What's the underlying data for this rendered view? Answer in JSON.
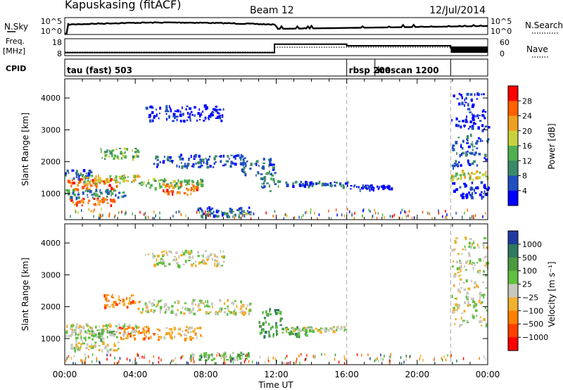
{
  "header": {
    "station": "Kapuskasing (fitACF)",
    "beam": "Beam 12",
    "date": "12/Jul/2014"
  },
  "noise_panel": {
    "left_label": "N.Sky",
    "right_label": "N.Search",
    "left_ticks": [
      "10^5",
      "10^0"
    ],
    "right_ticks": [
      "10^5",
      "10^0"
    ]
  },
  "freq_panel": {
    "left_label_top": "Freq.",
    "left_label_unit": "[MHz]",
    "right_label": "Nave",
    "left_ticks": [
      "18",
      "8"
    ],
    "right_ticks": [
      "60",
      "0"
    ]
  },
  "cpid_panel": {
    "label": "CPID",
    "modes": [
      {
        "name": "tau (fast) 503",
        "start_h": 0.0,
        "end_h": 16.0
      },
      {
        "name": "rbsp 200",
        "start_h": 16.0,
        "end_h": 17.6
      },
      {
        "name": "icescan 1200",
        "start_h": 17.6,
        "end_h": 21.9
      }
    ]
  },
  "power_panel": {
    "ylabel": "Slant Range [km]",
    "yticks": [
      "4000",
      "3000",
      "2000",
      "1000"
    ],
    "colorbar_label": "Power [dB]",
    "colorbar_ticks": [
      "28",
      "24",
      "20",
      "16",
      "12",
      "8",
      "4"
    ]
  },
  "velocity_panel": {
    "ylabel": "Slant Range [km]",
    "yticks": [
      "4000",
      "3000",
      "2000",
      "1000"
    ],
    "colorbar_label": "Velocity [m s⁻¹]",
    "colorbar_ticks": [
      "1000",
      "500",
      "100",
      "25",
      "−25",
      "−100",
      "−500",
      "−1000"
    ]
  },
  "time_axis": {
    "xlabel": "Time UT",
    "ticks": [
      "00:00",
      "04:00",
      "08:00",
      "12:00",
      "16:00",
      "20:00",
      "00:00"
    ]
  },
  "chart_data": {
    "type": "heatmap",
    "x_range_h": [
      0,
      24
    ],
    "y_range_km": [
      180,
      4600
    ],
    "mode_boundaries_h": [
      16.0,
      21.9
    ],
    "frequency_MHz": [
      {
        "start_h": 0.0,
        "end_h": 11.9,
        "value": 10
      },
      {
        "start_h": 11.9,
        "end_h": 16.0,
        "value": 15.5
      },
      {
        "start_h": 16.0,
        "end_h": 21.9,
        "value": 14.5
      },
      {
        "start_h": 21.9,
        "end_h": 24.0,
        "value": 13
      }
    ],
    "power_colors": [
      "#0000ff",
      "#2050c0",
      "#3a8a6a",
      "#50b050",
      "#c8d23c",
      "#f0a020",
      "#ff6000",
      "#ff0000"
    ],
    "velocity_colors": [
      "#1e3ca0",
      "#2e7a5e",
      "#4a9a40",
      "#60c040",
      "#c8c8c0",
      "#f0b030",
      "#ff8000",
      "#ff4000",
      "#ff0000"
    ],
    "power_regions": [
      {
        "t": [
          0.1,
          3.0
        ],
        "r": [
          1150,
          1500
        ],
        "level": 6
      },
      {
        "t": [
          0.2,
          2.8
        ],
        "r": [
          650,
          900
        ],
        "level": 6
      },
      {
        "t": [
          0.0,
          3.4
        ],
        "r": [
          900,
          1150
        ],
        "level": 2
      },
      {
        "t": [
          0.0,
          1.5
        ],
        "r": [
          1500,
          1800
        ],
        "level": 1
      },
      {
        "t": [
          1.0,
          4.2
        ],
        "r": [
          1350,
          1600
        ],
        "level": 4
      },
      {
        "t": [
          4.2,
          7.8
        ],
        "r": [
          1200,
          1500
        ],
        "level": 3
      },
      {
        "t": [
          5.5,
          7.5
        ],
        "r": [
          1000,
          1350
        ],
        "level": 6
      },
      {
        "t": [
          5.0,
          10.2
        ],
        "r": [
          1850,
          2250
        ],
        "level": 1
      },
      {
        "t": [
          2.0,
          4.2
        ],
        "r": [
          2100,
          2450
        ],
        "level": 3
      },
      {
        "t": [
          4.5,
          9.0
        ],
        "r": [
          3300,
          3800
        ],
        "level": 0
      },
      {
        "t": [
          10.0,
          11.8
        ],
        "r": [
          1600,
          2150
        ],
        "level": 1
      },
      {
        "t": [
          11.0,
          12.2
        ],
        "r": [
          1100,
          1700
        ],
        "level": 2
      },
      {
        "t": [
          12.5,
          16.0
        ],
        "r": [
          1250,
          1400
        ],
        "level": 1
      },
      {
        "t": [
          16.0,
          18.5
        ],
        "r": [
          1150,
          1300
        ],
        "level": 0
      },
      {
        "t": [
          7.5,
          10.5
        ],
        "r": [
          300,
          600
        ],
        "level": 1
      },
      {
        "t": [
          21.9,
          24.0
        ],
        "r": [
          1450,
          1750
        ],
        "level": 4
      },
      {
        "t": [
          21.9,
          24.0
        ],
        "r": [
          1800,
          2900
        ],
        "level": 1
      },
      {
        "t": [
          21.9,
          24.0
        ],
        "r": [
          900,
          1400
        ],
        "level": 0
      },
      {
        "t": [
          21.9,
          24.0
        ],
        "r": [
          3000,
          4200
        ],
        "level": 0
      }
    ],
    "velocity_regions": [
      {
        "t": [
          0.0,
          4.2
        ],
        "r": [
          1100,
          1500
        ],
        "level": 4
      },
      {
        "t": [
          0.2,
          3.0
        ],
        "r": [
          650,
          950
        ],
        "level": 4
      },
      {
        "t": [
          0.5,
          3.0
        ],
        "r": [
          1000,
          1300
        ],
        "level": 5
      },
      {
        "t": [
          3.0,
          5.5
        ],
        "r": [
          1000,
          1400
        ],
        "level": 2
      },
      {
        "t": [
          4.0,
          10.5
        ],
        "r": [
          1800,
          2250
        ],
        "level": 4
      },
      {
        "t": [
          2.2,
          4.2
        ],
        "r": [
          2000,
          2400
        ],
        "level": 2
      },
      {
        "t": [
          5.5,
          7.8
        ],
        "r": [
          1000,
          1400
        ],
        "level": 3
      },
      {
        "t": [
          4.5,
          9.0
        ],
        "r": [
          3300,
          3800
        ],
        "level": 4
      },
      {
        "t": [
          11.0,
          12.3
        ],
        "r": [
          1100,
          1700
        ],
        "level": 6
      },
      {
        "t": [
          11.2,
          12.2
        ],
        "r": [
          1750,
          2000
        ],
        "level": 6
      },
      {
        "t": [
          12.3,
          14.0
        ],
        "r": [
          1100,
          1400
        ],
        "level": 6
      },
      {
        "t": [
          12.5,
          16.0
        ],
        "r": [
          1250,
          1400
        ],
        "level": 4
      },
      {
        "t": [
          7.0,
          10.5
        ],
        "r": [
          350,
          600
        ],
        "level": 5
      },
      {
        "t": [
          21.9,
          24.0
        ],
        "r": [
          1400,
          2900
        ],
        "level": 4
      },
      {
        "t": [
          21.9,
          24.0
        ],
        "r": [
          3000,
          4200
        ],
        "level": 4
      }
    ]
  }
}
